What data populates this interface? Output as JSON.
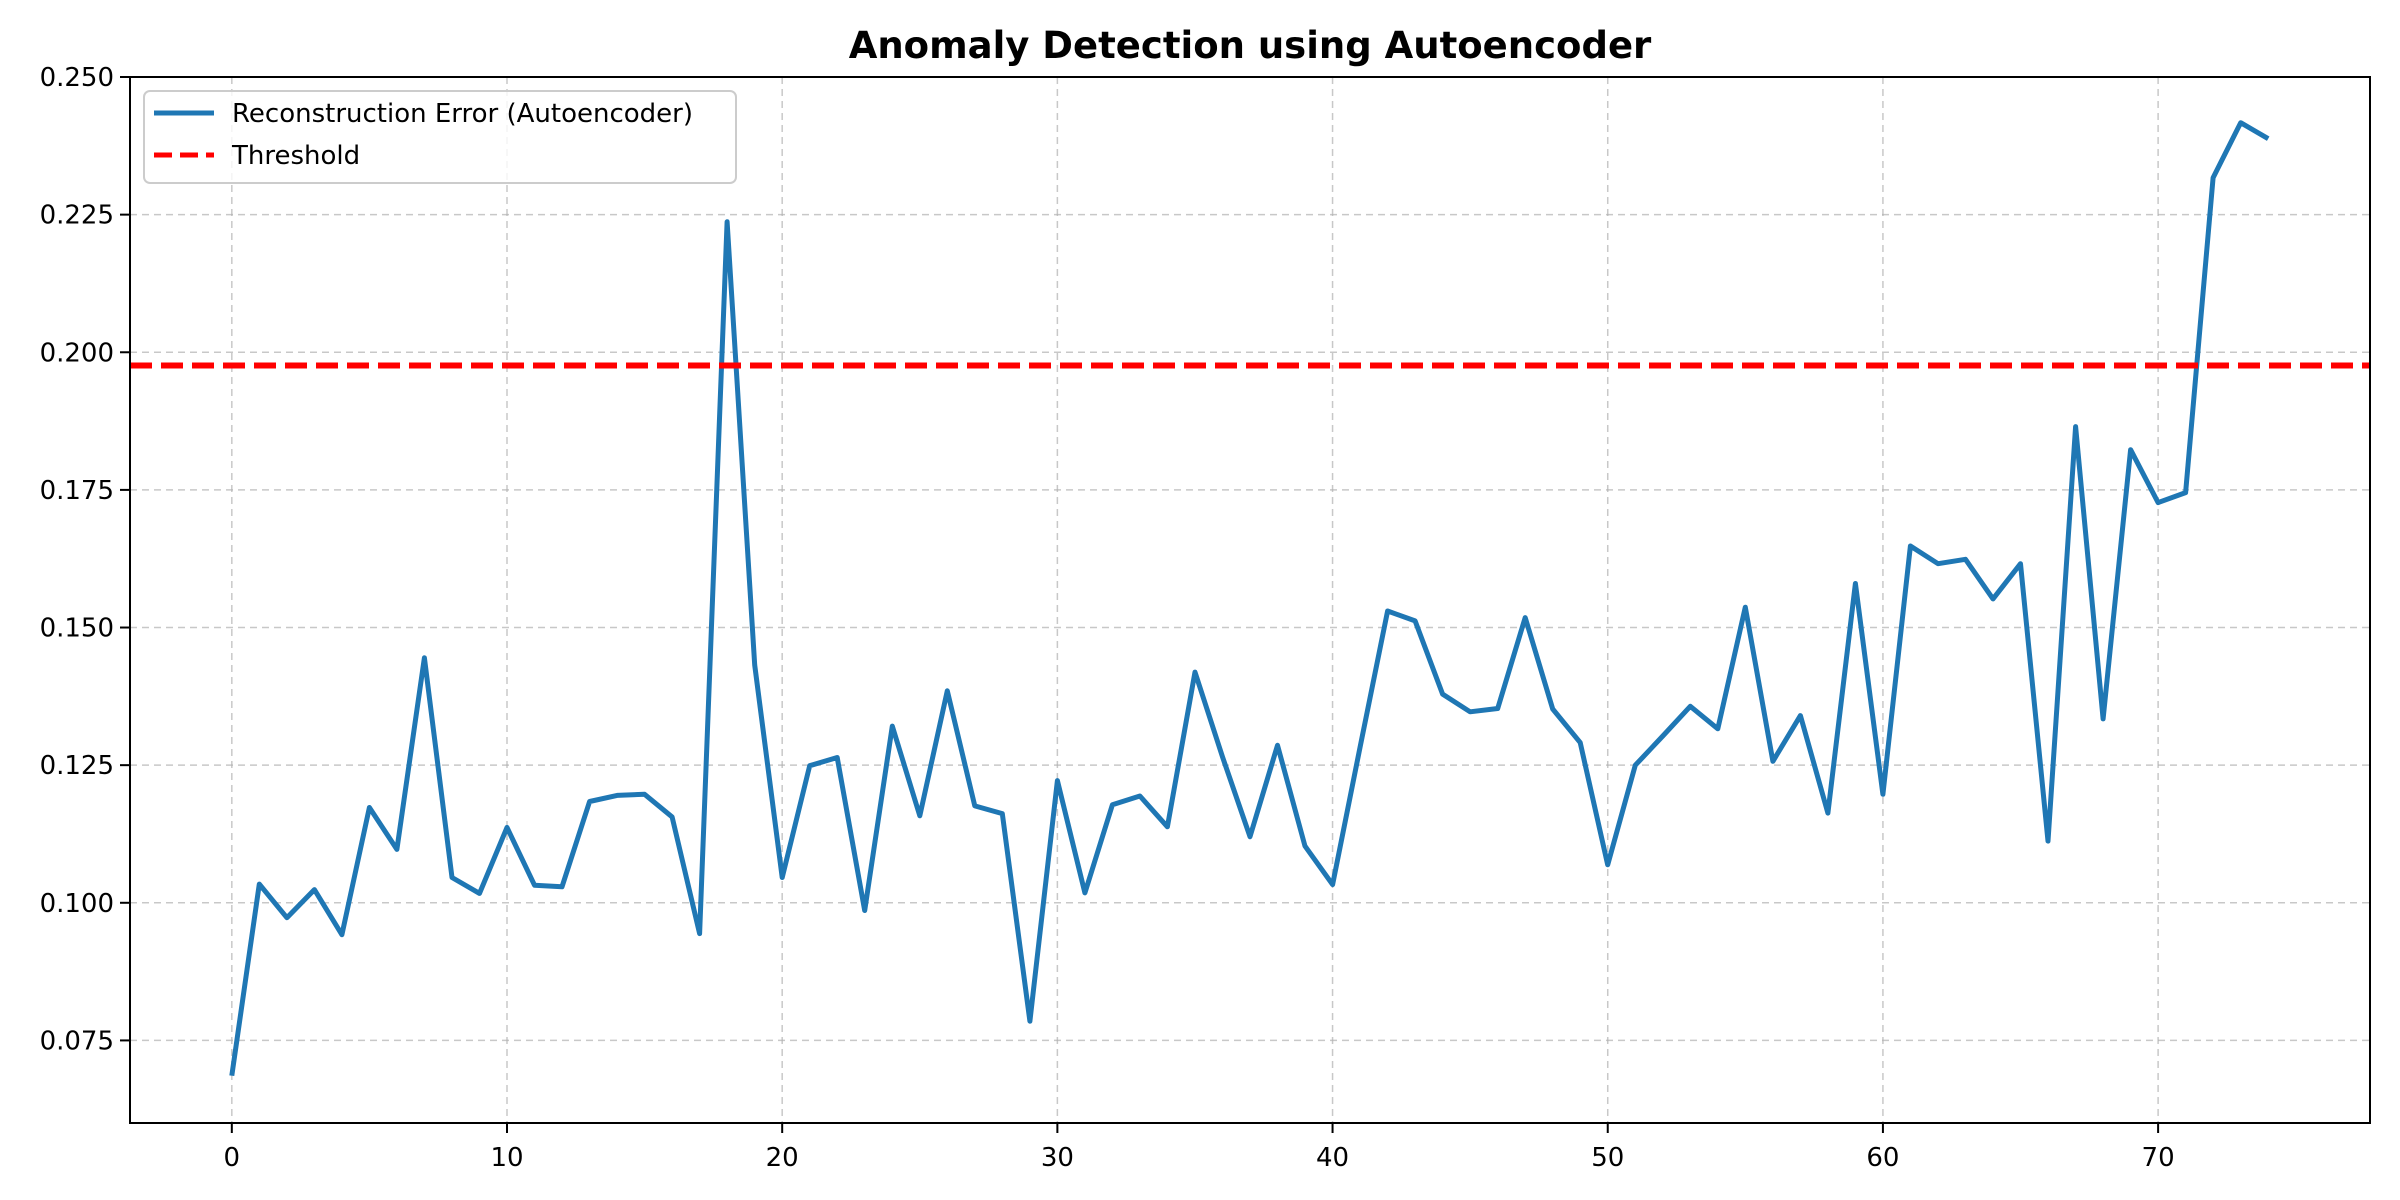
{
  "chart_data": {
    "type": "line",
    "title": "Anomaly Detection using Autoencoder",
    "xlabel": "",
    "ylabel": "",
    "xlim": [
      -3.7,
      77.7
    ],
    "ylim": [
      0.06,
      0.25
    ],
    "x_ticks": [
      0,
      10,
      20,
      30,
      40,
      50,
      60,
      70
    ],
    "y_ticks": [
      "0.075",
      "0.100",
      "0.125",
      "0.150",
      "0.175",
      "0.200",
      "0.225",
      "0.250"
    ],
    "grid": true,
    "legend_position": "top-left",
    "series": [
      {
        "name": "Reconstruction Error (Autoencoder)",
        "color": "#1f77b4",
        "style": "solid",
        "values": [
          0.0686,
          0.1034,
          0.0973,
          0.1024,
          0.0942,
          0.1173,
          0.1097,
          0.1445,
          0.1046,
          0.1017,
          0.1137,
          0.1032,
          0.1029,
          0.1184,
          0.1195,
          0.1197,
          0.1156,
          0.0944,
          0.2237,
          0.1432,
          0.1046,
          0.1249,
          0.1264,
          0.0986,
          0.1321,
          0.1158,
          0.1385,
          0.1176,
          0.1162,
          0.0785,
          0.1222,
          0.1018,
          0.1178,
          0.1194,
          0.1138,
          0.1419,
          0.1265,
          0.112,
          0.1286,
          0.1103,
          0.1033,
          0.1283,
          0.153,
          0.1512,
          0.1379,
          0.1347,
          0.1353,
          0.1518,
          0.1352,
          0.1291,
          0.1069,
          0.125,
          0.1303,
          0.1357,
          0.1316,
          0.1537,
          0.1257,
          0.134,
          0.1163,
          0.158,
          0.1197,
          0.1648,
          0.1616,
          0.1624,
          0.1552,
          0.1616,
          0.1112,
          0.1865,
          0.1334,
          0.1823,
          0.1727,
          0.1745,
          0.2317,
          0.2417,
          0.2388
        ]
      },
      {
        "name": "Threshold",
        "color": "#ff0000",
        "style": "dashed",
        "value": 0.1976
      }
    ]
  }
}
